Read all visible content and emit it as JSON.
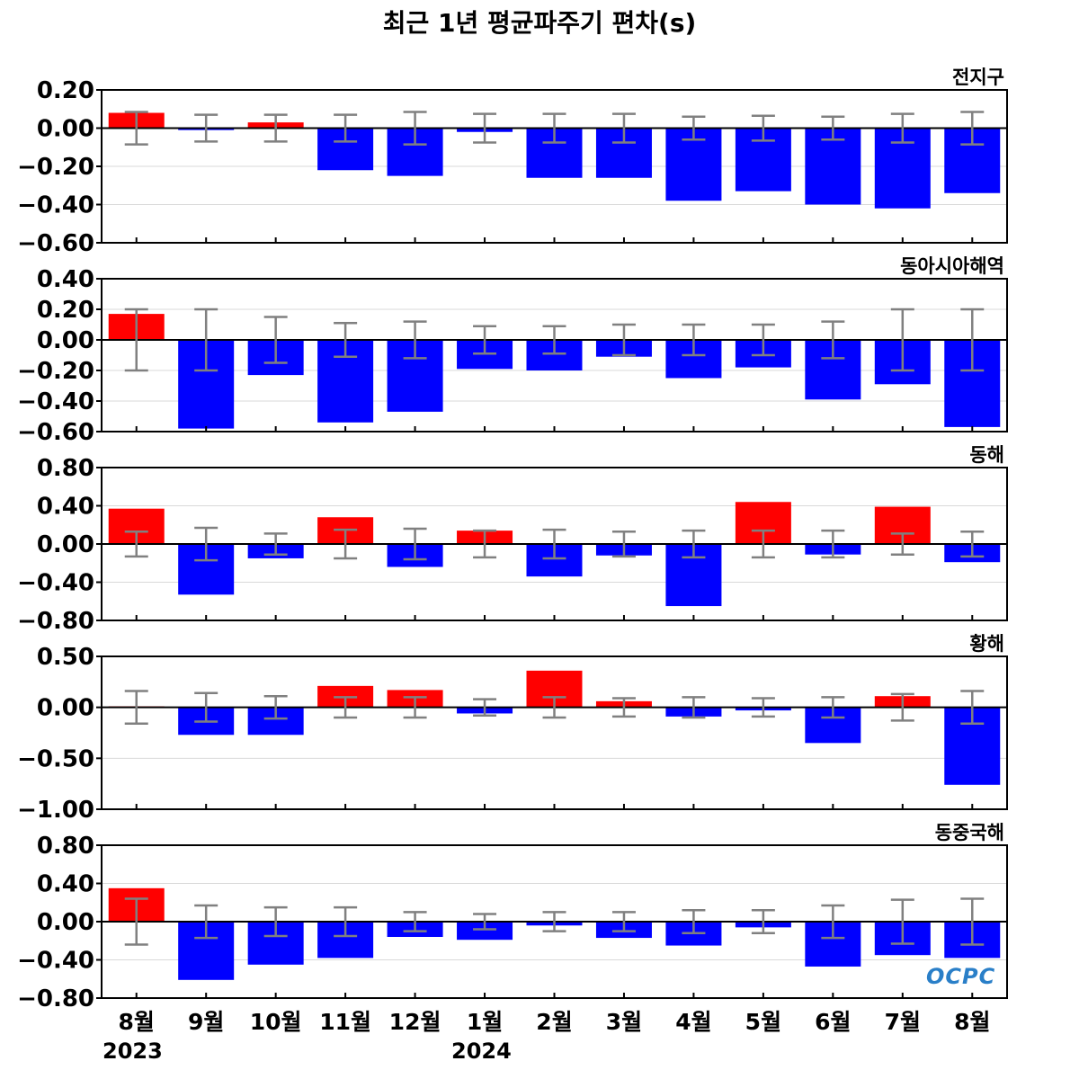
{
  "title": "최근 1년 평균파주기 편차(s)",
  "logo": "OCPC",
  "years": {
    "first": "2023",
    "second": "2024"
  },
  "colors": {
    "positive": "#ff0000",
    "negative": "#0000ff",
    "error_bar": "#808080",
    "zero_line": "#000000",
    "grid": "#d9d9d9"
  },
  "chart_data": [
    {
      "type": "bar",
      "region": "전지구",
      "categories": [
        "8월",
        "9월",
        "10월",
        "11월",
        "12월",
        "1월",
        "2월",
        "3월",
        "4월",
        "5월",
        "6월",
        "7월",
        "8월"
      ],
      "values": [
        0.08,
        -0.01,
        0.03,
        -0.22,
        -0.25,
        -0.02,
        -0.26,
        -0.26,
        -0.38,
        -0.33,
        -0.4,
        -0.42,
        -0.34
      ],
      "errors": [
        0.085,
        0.07,
        0.07,
        0.07,
        0.085,
        0.075,
        0.075,
        0.075,
        0.06,
        0.065,
        0.06,
        0.075,
        0.085
      ],
      "ylim": [
        -0.6,
        0.2
      ],
      "yticks": [
        0.2,
        0.0,
        -0.2,
        -0.4,
        -0.6
      ],
      "ytick_labels": [
        "0.20",
        "0.00",
        "−0.20",
        "−0.40",
        "−0.60"
      ]
    },
    {
      "type": "bar",
      "region": "동아시아해역",
      "categories": [
        "8월",
        "9월",
        "10월",
        "11월",
        "12월",
        "1월",
        "2월",
        "3월",
        "4월",
        "5월",
        "6월",
        "7월",
        "8월"
      ],
      "values": [
        0.17,
        -0.58,
        -0.23,
        -0.54,
        -0.47,
        -0.19,
        -0.2,
        -0.11,
        -0.25,
        -0.18,
        -0.39,
        -0.29,
        -0.57
      ],
      "errors": [
        0.2,
        0.2,
        0.15,
        0.11,
        0.12,
        0.09,
        0.09,
        0.1,
        0.1,
        0.1,
        0.12,
        0.2,
        0.2
      ],
      "ylim": [
        -0.6,
        0.4
      ],
      "yticks": [
        0.4,
        0.2,
        0.0,
        -0.2,
        -0.4,
        -0.6
      ],
      "ytick_labels": [
        "0.40",
        "0.20",
        "0.00",
        "−0.20",
        "−0.40",
        "−0.60"
      ]
    },
    {
      "type": "bar",
      "region": "동해",
      "categories": [
        "8월",
        "9월",
        "10월",
        "11월",
        "12월",
        "1월",
        "2월",
        "3월",
        "4월",
        "5월",
        "6월",
        "7월",
        "8월"
      ],
      "values": [
        0.37,
        -0.53,
        -0.15,
        0.28,
        -0.24,
        0.14,
        -0.34,
        -0.12,
        -0.65,
        0.44,
        -0.11,
        0.39,
        -0.19
      ],
      "errors": [
        0.13,
        0.17,
        0.11,
        0.15,
        0.16,
        0.14,
        0.15,
        0.13,
        0.14,
        0.14,
        0.14,
        0.11,
        0.13
      ],
      "ylim": [
        -0.8,
        0.8
      ],
      "yticks": [
        0.8,
        0.4,
        0.0,
        -0.4,
        -0.8
      ],
      "ytick_labels": [
        "0.80",
        "0.40",
        "0.00",
        "−0.40",
        "−0.80"
      ]
    },
    {
      "type": "bar",
      "region": "황해",
      "categories": [
        "8월",
        "9월",
        "10월",
        "11월",
        "12월",
        "1월",
        "2월",
        "3월",
        "4월",
        "5월",
        "6월",
        "7월",
        "8월"
      ],
      "values": [
        0.01,
        -0.27,
        -0.27,
        0.21,
        0.17,
        -0.06,
        0.36,
        0.06,
        -0.09,
        -0.03,
        -0.35,
        0.11,
        -0.76
      ],
      "errors": [
        0.16,
        0.14,
        0.11,
        0.1,
        0.1,
        0.08,
        0.1,
        0.09,
        0.1,
        0.09,
        0.1,
        0.13,
        0.16
      ],
      "ylim": [
        -1.0,
        0.5
      ],
      "yticks": [
        0.5,
        0.0,
        -0.5,
        -1.0
      ],
      "ytick_labels": [
        "0.50",
        "0.00",
        "−0.50",
        "−1.00"
      ]
    },
    {
      "type": "bar",
      "region": "동중국해",
      "categories": [
        "8월",
        "9월",
        "10월",
        "11월",
        "12월",
        "1월",
        "2월",
        "3월",
        "4월",
        "5월",
        "6월",
        "7월",
        "8월"
      ],
      "values": [
        0.35,
        -0.61,
        -0.45,
        -0.38,
        -0.16,
        -0.19,
        -0.04,
        -0.17,
        -0.25,
        -0.06,
        -0.47,
        -0.35,
        -0.38
      ],
      "errors": [
        0.24,
        0.17,
        0.15,
        0.15,
        0.1,
        0.08,
        0.1,
        0.1,
        0.12,
        0.12,
        0.17,
        0.23,
        0.24
      ],
      "ylim": [
        -0.8,
        0.8
      ],
      "yticks": [
        0.8,
        0.4,
        0.0,
        -0.4,
        -0.8
      ],
      "ytick_labels": [
        "0.80",
        "0.40",
        "0.00",
        "−0.40",
        "−0.80"
      ]
    }
  ]
}
